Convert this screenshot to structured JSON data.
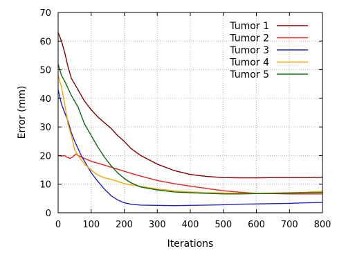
{
  "chart_data": {
    "type": "line",
    "title": "",
    "xlabel": "Iterations",
    "ylabel": "Error (mm)",
    "xlim": [
      0,
      800
    ],
    "ylim": [
      0,
      70
    ],
    "xticks": [
      0,
      100,
      200,
      300,
      400,
      500,
      600,
      700,
      800
    ],
    "yticks": [
      0,
      10,
      20,
      30,
      40,
      50,
      60,
      70
    ],
    "grid": true,
    "legend_position": "top-right",
    "series": [
      {
        "name": "Tumor 1",
        "color": "#800000",
        "points": [
          [
            0,
            63
          ],
          [
            10,
            60
          ],
          [
            20,
            56
          ],
          [
            30,
            51
          ],
          [
            40,
            47
          ],
          [
            50,
            45
          ],
          [
            60,
            43
          ],
          [
            70,
            41
          ],
          [
            80,
            39
          ],
          [
            90,
            37.5
          ],
          [
            100,
            36
          ],
          [
            120,
            33.5
          ],
          [
            140,
            31.5
          ],
          [
            160,
            29.5
          ],
          [
            180,
            27
          ],
          [
            200,
            25
          ],
          [
            220,
            22.5
          ],
          [
            250,
            20
          ],
          [
            300,
            17
          ],
          [
            350,
            14.8
          ],
          [
            400,
            13.4
          ],
          [
            450,
            12.7
          ],
          [
            500,
            12.3
          ],
          [
            550,
            12.2
          ],
          [
            600,
            12.2
          ],
          [
            650,
            12.3
          ],
          [
            700,
            12.3
          ],
          [
            750,
            12.3
          ],
          [
            800,
            12.4
          ]
        ]
      },
      {
        "name": "Tumor 2",
        "color": "#e8211d",
        "points": [
          [
            0,
            20
          ],
          [
            10,
            19.8
          ],
          [
            20,
            20
          ],
          [
            25,
            19.5
          ],
          [
            30,
            19.3
          ],
          [
            35,
            19
          ],
          [
            40,
            19.2
          ],
          [
            45,
            19.6
          ],
          [
            50,
            20.2
          ],
          [
            55,
            20.5
          ],
          [
            60,
            20
          ],
          [
            70,
            19.5
          ],
          [
            80,
            19
          ],
          [
            100,
            18
          ],
          [
            150,
            16.3
          ],
          [
            200,
            14.5
          ],
          [
            250,
            12.8
          ],
          [
            300,
            11.3
          ],
          [
            350,
            10.2
          ],
          [
            400,
            9.3
          ],
          [
            450,
            8.5
          ],
          [
            500,
            7.7
          ],
          [
            550,
            7.2
          ],
          [
            600,
            6.8
          ],
          [
            650,
            6.7
          ],
          [
            700,
            6.6
          ],
          [
            750,
            6.6
          ],
          [
            800,
            6.6
          ]
        ]
      },
      {
        "name": "Tumor 3",
        "color": "#1f1fcc",
        "points": [
          [
            0,
            43
          ],
          [
            10,
            38
          ],
          [
            20,
            35
          ],
          [
            30,
            32
          ],
          [
            40,
            28
          ],
          [
            50,
            25
          ],
          [
            60,
            22.5
          ],
          [
            70,
            20
          ],
          [
            80,
            18
          ],
          [
            90,
            16
          ],
          [
            100,
            14
          ],
          [
            120,
            11
          ],
          [
            140,
            8.3
          ],
          [
            160,
            6
          ],
          [
            180,
            4.5
          ],
          [
            200,
            3.5
          ],
          [
            220,
            3
          ],
          [
            250,
            2.7
          ],
          [
            300,
            2.6
          ],
          [
            350,
            2.5
          ],
          [
            400,
            2.6
          ],
          [
            450,
            2.7
          ],
          [
            500,
            2.8
          ],
          [
            550,
            3
          ],
          [
            600,
            3.1
          ],
          [
            650,
            3.2
          ],
          [
            700,
            3.3
          ],
          [
            750,
            3.5
          ],
          [
            800,
            3.6
          ]
        ]
      },
      {
        "name": "Tumor 4",
        "color": "#f5a300",
        "points": [
          [
            0,
            48
          ],
          [
            10,
            44
          ],
          [
            20,
            38
          ],
          [
            30,
            31
          ],
          [
            40,
            27
          ],
          [
            50,
            22
          ],
          [
            60,
            20
          ],
          [
            70,
            18.5
          ],
          [
            80,
            17
          ],
          [
            90,
            16
          ],
          [
            100,
            15
          ],
          [
            110,
            14
          ],
          [
            120,
            13.2
          ],
          [
            130,
            12.7
          ],
          [
            140,
            12.2
          ],
          [
            160,
            11.7
          ],
          [
            180,
            11
          ],
          [
            200,
            10.2
          ],
          [
            250,
            9.2
          ],
          [
            300,
            8.3
          ],
          [
            350,
            7.7
          ],
          [
            400,
            7.3
          ],
          [
            450,
            7
          ],
          [
            500,
            6.9
          ],
          [
            550,
            6.8
          ],
          [
            600,
            6.8
          ],
          [
            650,
            6.9
          ],
          [
            700,
            7
          ],
          [
            750,
            7.2
          ],
          [
            800,
            7.5
          ]
        ]
      },
      {
        "name": "Tumor 5",
        "color": "#0c6a0c",
        "points": [
          [
            0,
            52
          ],
          [
            10,
            48
          ],
          [
            20,
            46
          ],
          [
            30,
            43.5
          ],
          [
            40,
            41
          ],
          [
            50,
            39
          ],
          [
            60,
            37
          ],
          [
            70,
            34
          ],
          [
            80,
            31
          ],
          [
            90,
            29
          ],
          [
            100,
            27
          ],
          [
            120,
            23
          ],
          [
            140,
            19.5
          ],
          [
            160,
            16.5
          ],
          [
            180,
            14
          ],
          [
            200,
            12
          ],
          [
            220,
            10.5
          ],
          [
            250,
            9
          ],
          [
            300,
            8
          ],
          [
            350,
            7.3
          ],
          [
            400,
            7
          ],
          [
            450,
            6.8
          ],
          [
            500,
            6.6
          ],
          [
            550,
            6.6
          ],
          [
            600,
            6.7
          ],
          [
            650,
            6.8
          ],
          [
            700,
            6.9
          ],
          [
            750,
            7
          ],
          [
            800,
            7.1
          ]
        ]
      }
    ]
  }
}
